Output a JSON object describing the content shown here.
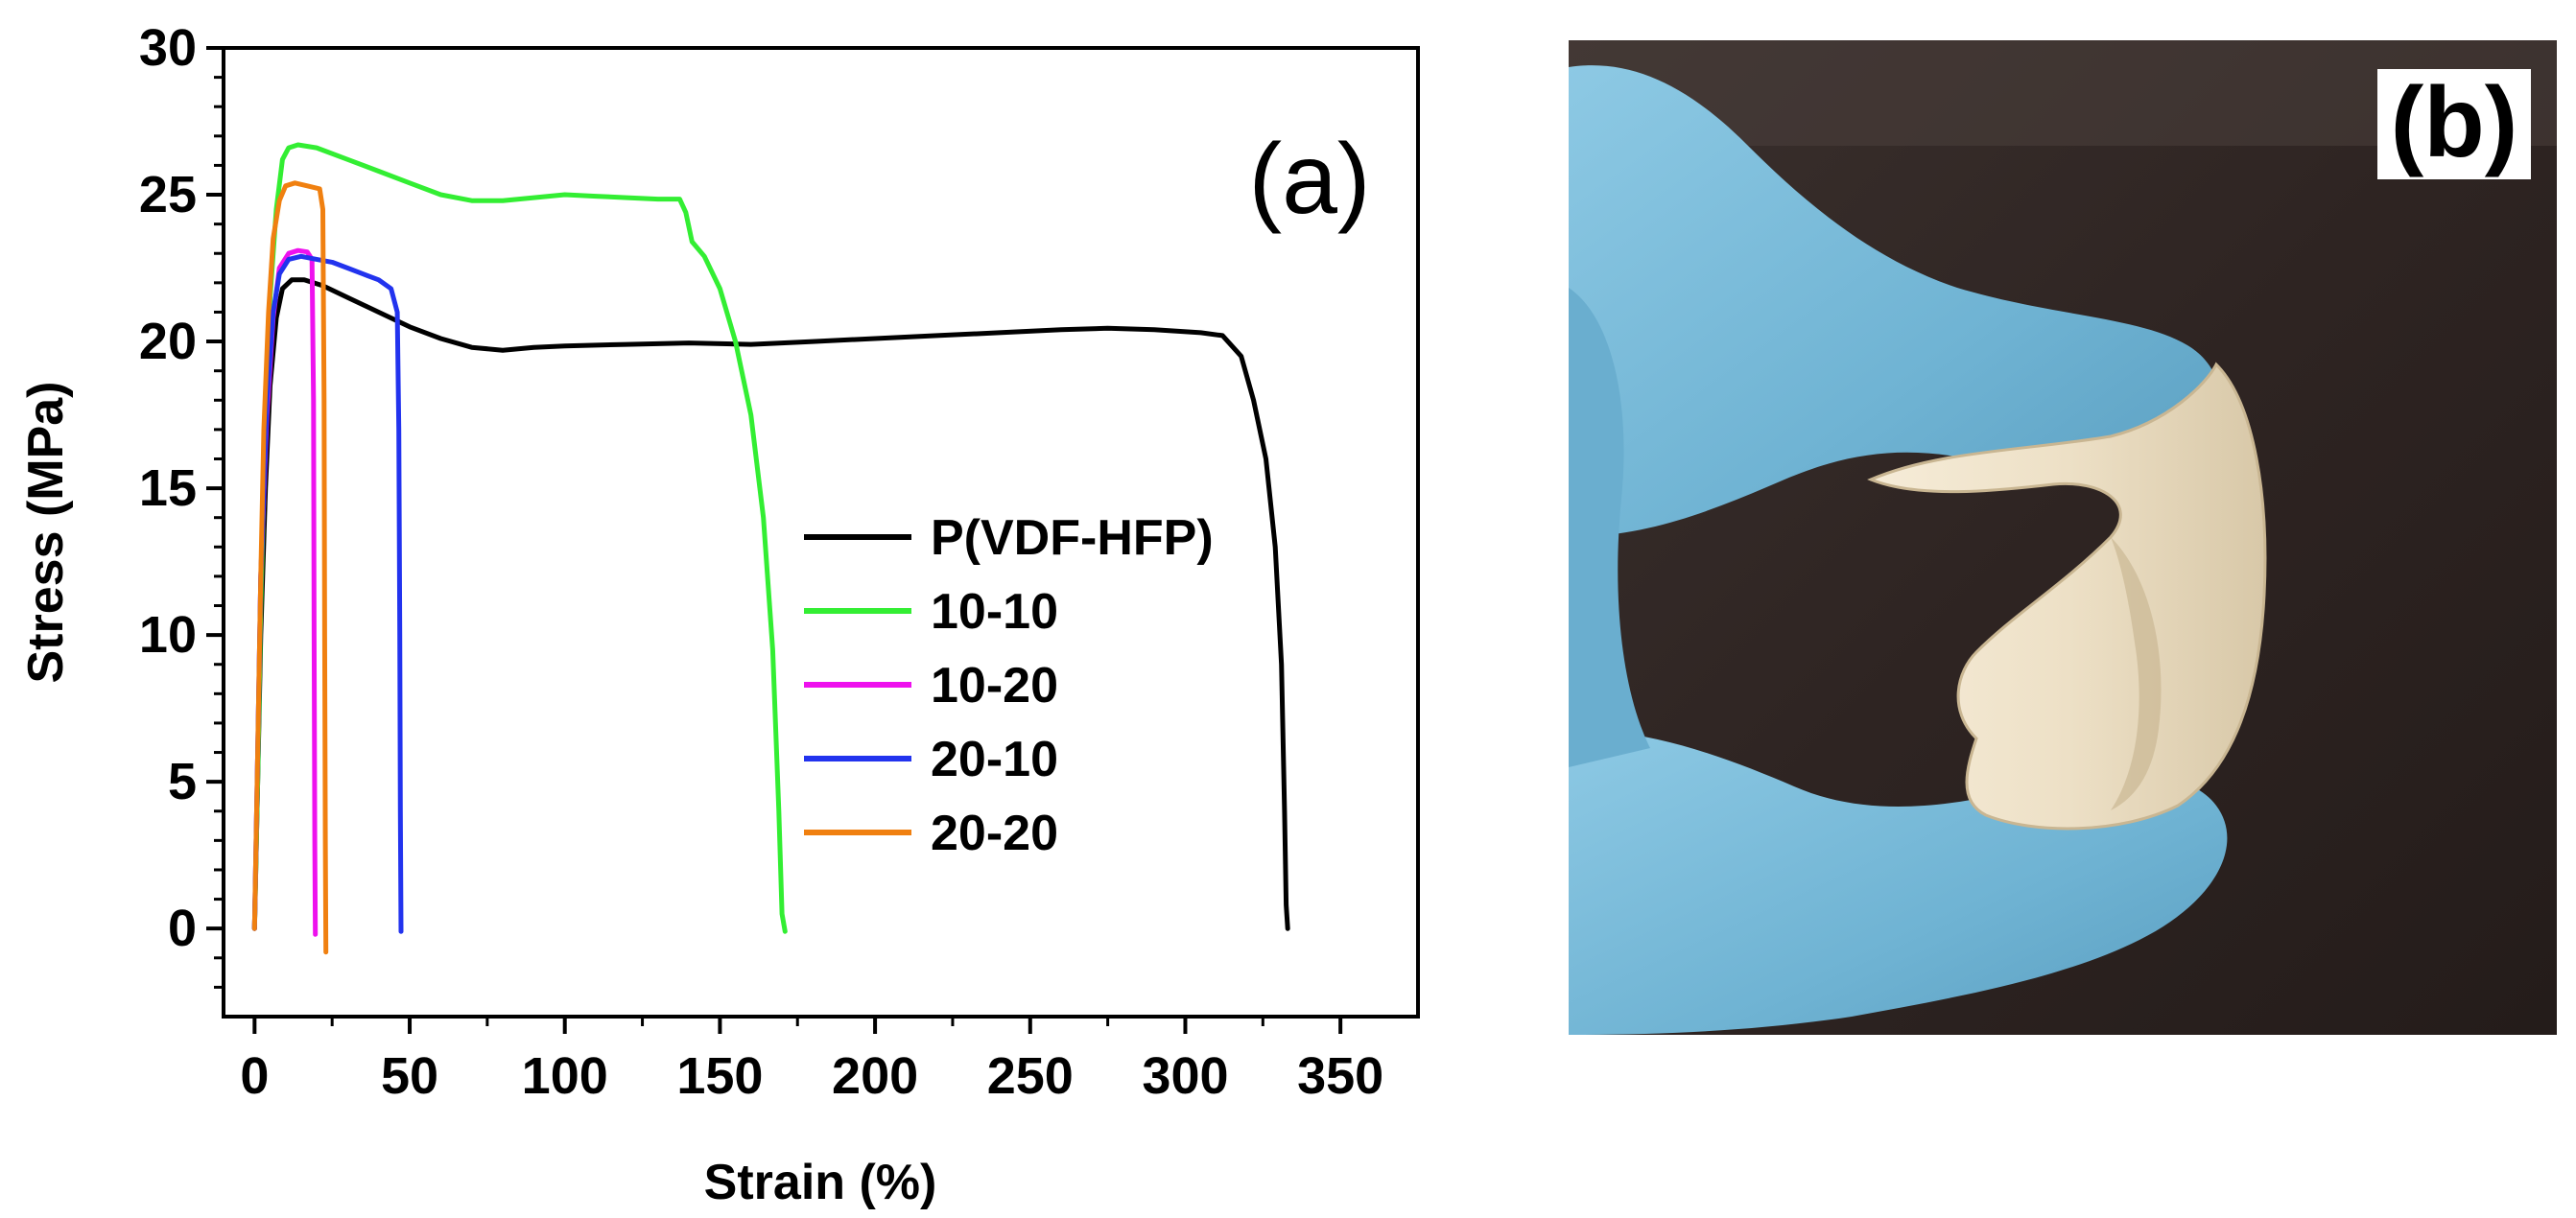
{
  "chart_data": {
    "type": "line",
    "title": "",
    "panel_label": "(a)",
    "xlabel": "Strain (%)",
    "ylabel": "Stress (MPa)",
    "xlim": [
      -10,
      375
    ],
    "ylim": [
      -3,
      30
    ],
    "xticks": [
      0,
      50,
      100,
      150,
      200,
      250,
      300,
      350
    ],
    "yticks": [
      0,
      5,
      10,
      15,
      20,
      25,
      30
    ],
    "grid": false,
    "legend_position": "center-right",
    "series": [
      {
        "name": "P(VDF-HFP)",
        "color": "#000000",
        "points": [
          [
            0,
            0
          ],
          [
            1,
            5
          ],
          [
            2,
            10
          ],
          [
            3.5,
            15
          ],
          [
            5,
            18.5
          ],
          [
            7,
            20.8
          ],
          [
            9,
            21.8
          ],
          [
            12,
            22.1
          ],
          [
            16,
            22.1
          ],
          [
            22,
            21.9
          ],
          [
            30,
            21.5
          ],
          [
            40,
            21
          ],
          [
            50,
            20.5
          ],
          [
            60,
            20.1
          ],
          [
            70,
            19.8
          ],
          [
            80,
            19.7
          ],
          [
            90,
            19.8
          ],
          [
            100,
            19.85
          ],
          [
            120,
            19.9
          ],
          [
            140,
            19.95
          ],
          [
            160,
            19.9
          ],
          [
            180,
            20
          ],
          [
            200,
            20.1
          ],
          [
            220,
            20.2
          ],
          [
            240,
            20.3
          ],
          [
            260,
            20.4
          ],
          [
            275,
            20.45
          ],
          [
            290,
            20.4
          ],
          [
            305,
            20.3
          ],
          [
            312,
            20.2
          ],
          [
            318,
            19.5
          ],
          [
            322,
            18
          ],
          [
            326,
            16
          ],
          [
            329,
            13
          ],
          [
            331,
            9
          ],
          [
            332,
            4
          ],
          [
            332.5,
            0.8
          ],
          [
            333,
            0
          ]
        ]
      },
      {
        "name": "10-10",
        "color": "#33ee33",
        "points": [
          [
            0,
            0
          ],
          [
            1,
            5
          ],
          [
            2,
            11
          ],
          [
            3.5,
            17
          ],
          [
            5,
            21.5
          ],
          [
            7,
            24.5
          ],
          [
            9,
            26.2
          ],
          [
            11,
            26.6
          ],
          [
            14,
            26.7
          ],
          [
            20,
            26.6
          ],
          [
            30,
            26.2
          ],
          [
            40,
            25.8
          ],
          [
            50,
            25.4
          ],
          [
            60,
            25
          ],
          [
            70,
            24.8
          ],
          [
            80,
            24.8
          ],
          [
            90,
            24.9
          ],
          [
            100,
            25
          ],
          [
            110,
            24.95
          ],
          [
            120,
            24.9
          ],
          [
            130,
            24.85
          ],
          [
            137,
            24.85
          ],
          [
            139,
            24.4
          ],
          [
            141,
            23.4
          ],
          [
            145,
            22.9
          ],
          [
            150,
            21.8
          ],
          [
            155,
            20
          ],
          [
            160,
            17.5
          ],
          [
            164,
            14
          ],
          [
            167,
            9.5
          ],
          [
            169,
            4
          ],
          [
            170,
            0.5
          ],
          [
            171,
            -0.1
          ]
        ]
      },
      {
        "name": "10-20",
        "color": "#ee11ee",
        "points": [
          [
            0,
            0
          ],
          [
            1,
            6
          ],
          [
            2,
            12
          ],
          [
            4,
            17.5
          ],
          [
            6,
            20.8
          ],
          [
            8,
            22.5
          ],
          [
            11,
            23
          ],
          [
            14,
            23.1
          ],
          [
            17,
            23.05
          ],
          [
            18.5,
            22.8
          ],
          [
            19,
            18
          ],
          [
            19.2,
            10
          ],
          [
            19.4,
            3
          ],
          [
            19.6,
            -0.2
          ]
        ]
      },
      {
        "name": "20-10",
        "color": "#2233ee",
        "points": [
          [
            0,
            0
          ],
          [
            1,
            6
          ],
          [
            2,
            12
          ],
          [
            4,
            18
          ],
          [
            6,
            21
          ],
          [
            8,
            22.3
          ],
          [
            11,
            22.8
          ],
          [
            15,
            22.9
          ],
          [
            20,
            22.8
          ],
          [
            25,
            22.7
          ],
          [
            30,
            22.5
          ],
          [
            35,
            22.3
          ],
          [
            40,
            22.1
          ],
          [
            44,
            21.8
          ],
          [
            46,
            21
          ],
          [
            46.5,
            17
          ],
          [
            46.8,
            10
          ],
          [
            47,
            4
          ],
          [
            47.2,
            -0.1
          ]
        ]
      },
      {
        "name": "20-20",
        "color": "#f08010",
        "points": [
          [
            0,
            0
          ],
          [
            1,
            6
          ],
          [
            2,
            12
          ],
          [
            3,
            17
          ],
          [
            4.5,
            21
          ],
          [
            6,
            23.5
          ],
          [
            8,
            24.8
          ],
          [
            10,
            25.3
          ],
          [
            13,
            25.4
          ],
          [
            17,
            25.3
          ],
          [
            21,
            25.2
          ],
          [
            22,
            24.5
          ],
          [
            22.4,
            18
          ],
          [
            22.6,
            10
          ],
          [
            22.8,
            3
          ],
          [
            23,
            -0.8
          ]
        ]
      }
    ]
  },
  "photo": {
    "panel_label": "(b)",
    "colors": {
      "background": "#2e2422",
      "glove": "#76b9d8",
      "film": "#efe3cd"
    }
  }
}
